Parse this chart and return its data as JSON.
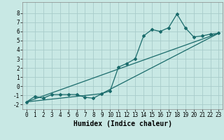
{
  "xlabel": "Humidex (Indice chaleur)",
  "xlim": [
    -0.5,
    23.5
  ],
  "ylim": [
    -2.5,
    9.2
  ],
  "xticks": [
    0,
    1,
    2,
    3,
    4,
    5,
    6,
    7,
    8,
    9,
    10,
    11,
    12,
    13,
    14,
    15,
    16,
    17,
    18,
    19,
    20,
    21,
    22,
    23
  ],
  "yticks": [
    -2,
    -1,
    0,
    1,
    2,
    3,
    4,
    5,
    6,
    7,
    8
  ],
  "bg_color": "#c8e8e4",
  "grid_color": "#a8ccca",
  "line_color": "#1a6b6b",
  "line1_x": [
    0,
    1,
    2,
    3,
    4,
    5,
    6,
    7,
    8,
    9,
    10,
    11,
    12,
    13,
    14,
    15,
    16,
    17,
    18,
    19,
    20,
    21,
    22,
    23
  ],
  "line1_y": [
    -1.7,
    -1.1,
    -1.3,
    -0.9,
    -0.9,
    -0.9,
    -0.9,
    -1.2,
    -1.3,
    -0.8,
    -0.5,
    2.1,
    2.5,
    3.0,
    5.5,
    6.2,
    6.0,
    6.4,
    7.9,
    6.4,
    5.4,
    5.5,
    5.7,
    5.8
  ],
  "line2_x": [
    0,
    23
  ],
  "line2_y": [
    -1.7,
    5.8
  ],
  "line3_x": [
    0,
    9,
    23
  ],
  "line3_y": [
    -1.7,
    -0.8,
    5.8
  ],
  "font_size_label": 7,
  "font_size_tick": 5.5,
  "marker": "D",
  "marker_size": 2.0,
  "linewidth": 0.9
}
